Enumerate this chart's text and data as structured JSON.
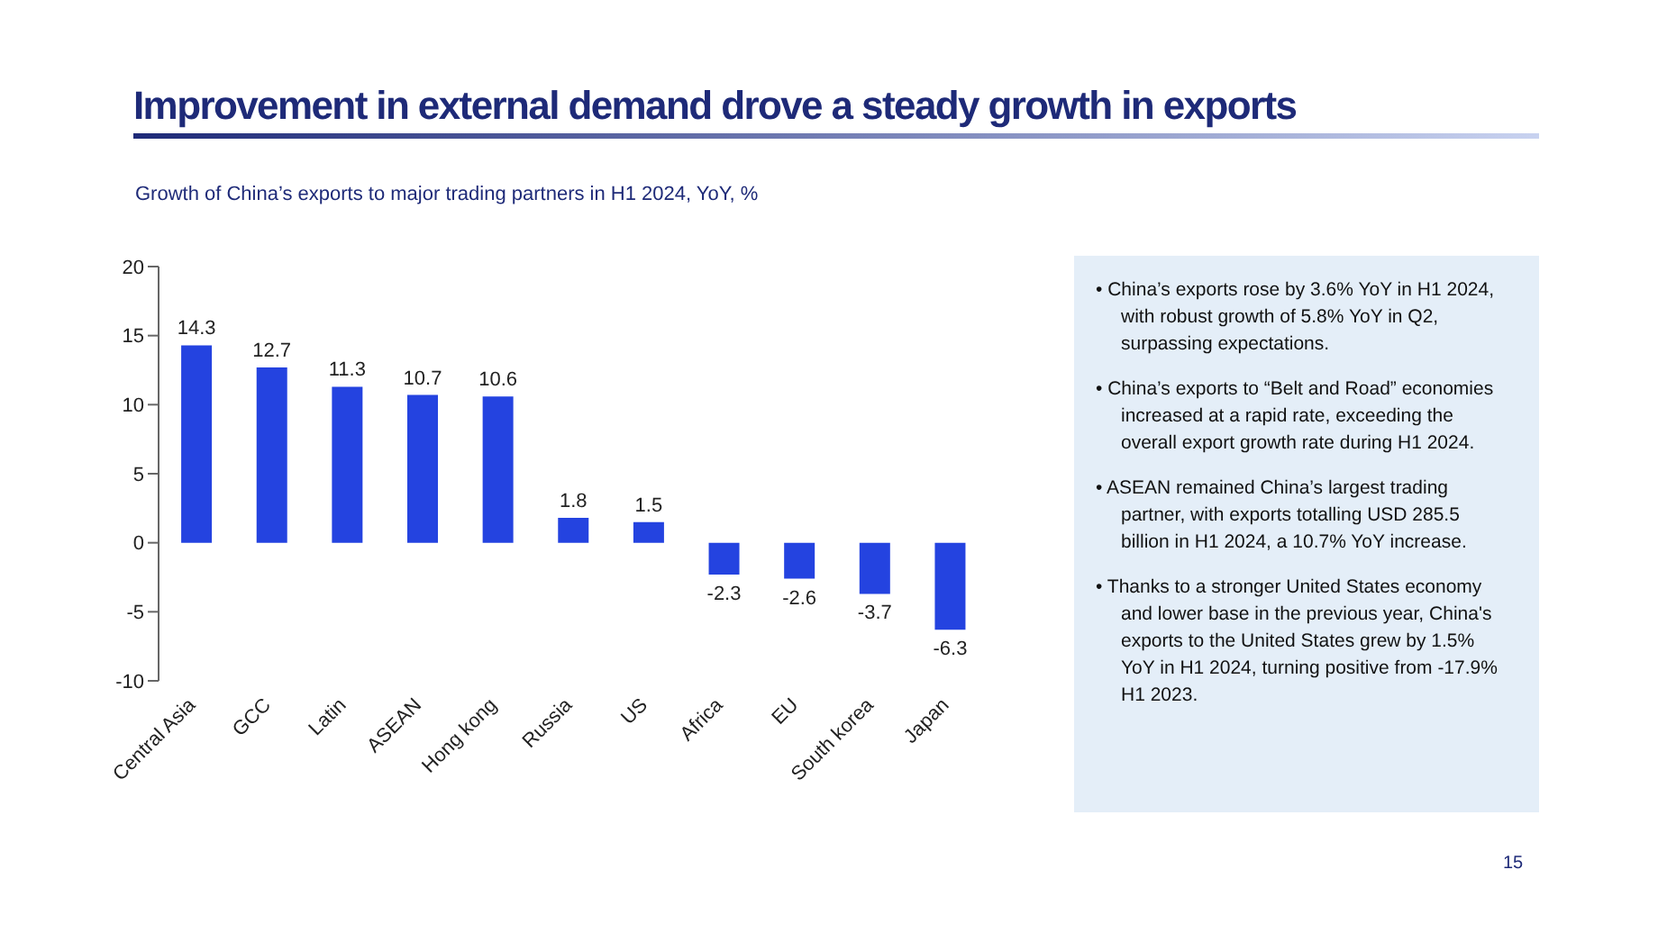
{
  "chart_data": {
    "type": "bar",
    "title": "Improvement in external demand drove a steady growth in exports",
    "subtitle": "Growth of China’s exports to major trading partners in H1 2024, YoY, %",
    "categories": [
      "Central Asia",
      "GCC",
      "Latin",
      "ASEAN",
      "Hong kong",
      "Russia",
      "US",
      "Africa",
      "EU",
      "South korea",
      "Japan"
    ],
    "values": [
      14.3,
      12.7,
      11.3,
      10.7,
      10.6,
      1.8,
      1.5,
      -2.3,
      -2.6,
      -3.7,
      -6.3
    ],
    "color": "#2443e0",
    "ylim": [
      -10,
      20
    ],
    "yticks": [
      -10,
      -5,
      0,
      5,
      10,
      15,
      20
    ],
    "grid": false,
    "data_labels": true,
    "annotations": [
      "• China’s exports rose by 3.6% YoY in H1 2024, with robust growth of 5.8% YoY in Q2, surpassing expectations.",
      "• China’s exports to “Belt and Road” economies increased at a rapid rate, exceeding the overall export growth rate during H1 2024.",
      "• ASEAN remained China’s largest trading partner, with exports totalling USD 285.5 billion in H1 2024, a 10.7% YoY increase.",
      "• Thanks to a stronger United States economy and lower base in the previous year, China's exports to the United States grew by 1.5% YoY in H1 2024, turning positive from -17.9% H1 2023.",
      "15"
    ]
  }
}
